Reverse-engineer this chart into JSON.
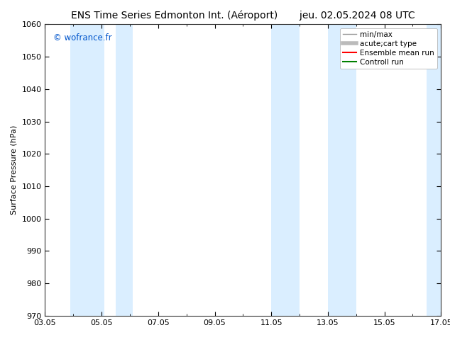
{
  "title": "ENS Time Series Edmonton Int. (Aéroport)       jeu. 02.05.2024 08 UTC",
  "ylabel": "Surface Pressure (hPa)",
  "ylim": [
    970,
    1060
  ],
  "yticks": [
    970,
    980,
    990,
    1000,
    1010,
    1020,
    1030,
    1040,
    1050,
    1060
  ],
  "xtick_labels": [
    "03.05",
    "05.05",
    "07.05",
    "09.05",
    "11.05",
    "13.05",
    "15.05",
    "17.05"
  ],
  "xtick_positions": [
    0,
    2,
    4,
    6,
    8,
    10,
    12,
    14
  ],
  "xlim": [
    0,
    14
  ],
  "watermark": "© wofrance.fr",
  "watermark_color": "#0055cc",
  "background_color": "#ffffff",
  "plot_bg_color": "#ffffff",
  "shaded_bands": [
    {
      "x_start": 0.9,
      "x_end": 2.1,
      "color": "#daeeff"
    },
    {
      "x_start": 2.5,
      "x_end": 3.1,
      "color": "#daeeff"
    },
    {
      "x_start": 8.0,
      "x_end": 9.0,
      "color": "#daeeff"
    },
    {
      "x_start": 10.0,
      "x_end": 11.0,
      "color": "#daeeff"
    },
    {
      "x_start": 13.5,
      "x_end": 14.0,
      "color": "#daeeff"
    }
  ],
  "legend_entries": [
    {
      "label": "min/max",
      "color": "#999999",
      "lw": 1.0,
      "style": "solid"
    },
    {
      "label": "acute;cart type",
      "color": "#bbbbbb",
      "lw": 4.0,
      "style": "solid"
    },
    {
      "label": "Ensemble mean run",
      "color": "#ff0000",
      "lw": 1.5,
      "style": "solid"
    },
    {
      "label": "Controll run",
      "color": "#008000",
      "lw": 1.5,
      "style": "solid"
    }
  ],
  "tick_font_size": 8,
  "label_font_size": 8,
  "title_font_size": 10,
  "spine_color": "#aaaaaa",
  "grid_color": "#dddddd"
}
